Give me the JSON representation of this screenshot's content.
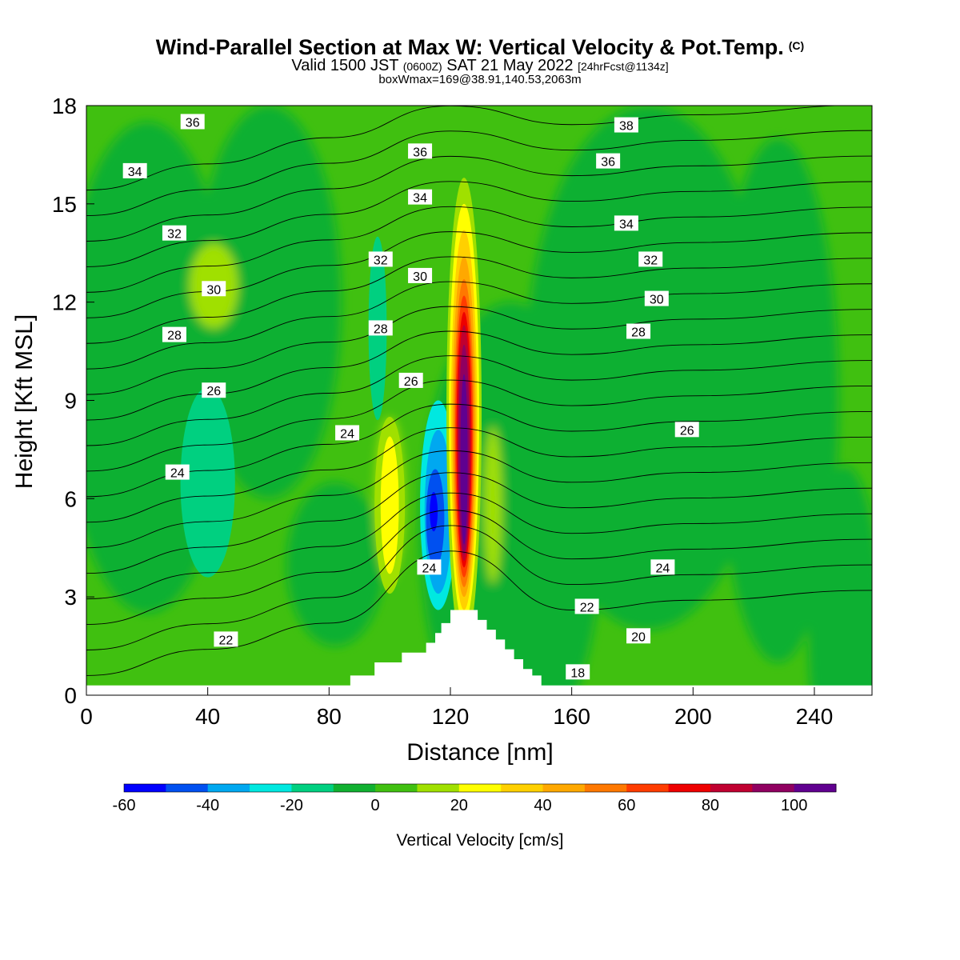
{
  "title": "Wind-Parallel Section at Max W: Vertical Velocity & Pot.Temp.",
  "copyright": "(C)",
  "subtitle_main_a": "Valid 1500 JST ",
  "subtitle_zulu": "(0600Z)",
  "subtitle_main_b": " SAT 21 May 2022 ",
  "subtitle_fcst": "[24hrFcst@1134z]",
  "subtitle2": "boxWmax=169@38.91,140.53,2063m",
  "chart_data": {
    "type": "heatmap",
    "xlabel": "Distance [nm]",
    "ylabel": "Height [Kft MSL]",
    "xlim": [
      0,
      259
    ],
    "ylim": [
      0,
      18
    ],
    "xticks": [
      0,
      40,
      80,
      120,
      160,
      200,
      240
    ],
    "yticks": [
      0,
      3,
      6,
      9,
      12,
      15,
      18
    ],
    "colorbar": {
      "label": "Vertical Velocity [cm/s]",
      "ticks": [
        -60,
        -40,
        -20,
        0,
        20,
        40,
        60,
        80,
        100
      ],
      "bins": [
        -60,
        -50,
        -40,
        -30,
        -20,
        -10,
        0,
        10,
        20,
        30,
        40,
        50,
        60,
        70,
        80,
        90,
        100,
        110
      ],
      "colors": [
        "#0000ff",
        "#0050f0",
        "#00a8f0",
        "#00e8e0",
        "#00d080",
        "#10b030",
        "#40c010",
        "#a0e000",
        "#ffff00",
        "#ffd000",
        "#ffa800",
        "#ff7800",
        "#ff3c00",
        "#ee0000",
        "#c00030",
        "#900060",
        "#600090"
      ]
    },
    "background_w_range": [
      0,
      10
    ],
    "features": [
      {
        "name": "updraft core",
        "x": 124,
        "y_range": [
          2.6,
          14.5
        ],
        "w_max": 110
      },
      {
        "name": "downdraft",
        "x": 116,
        "y_range": [
          2.8,
          9.2
        ],
        "w_min": -50
      },
      {
        "name": "weak downdraft",
        "x": 40,
        "y_range": [
          4,
          9.5
        ],
        "w_min": -20
      },
      {
        "name": "weak updraft",
        "x": 100,
        "y_range": [
          3,
          8.5
        ],
        "w_max": 30
      }
    ],
    "isentropes": [
      {
        "theta": 18,
        "x": 162,
        "y": 0.7
      },
      {
        "theta": 20,
        "x": 182,
        "y": 1.8
      },
      {
        "theta": 22,
        "x": 46,
        "y": 1.7
      },
      {
        "theta": 22,
        "x": 165,
        "y": 2.7
      },
      {
        "theta": 24,
        "x": 30,
        "y": 6.8
      },
      {
        "theta": 24,
        "x": 86,
        "y": 8.0
      },
      {
        "theta": 24,
        "x": 113,
        "y": 3.9
      },
      {
        "theta": 24,
        "x": 190,
        "y": 3.9
      },
      {
        "theta": 26,
        "x": 42,
        "y": 9.3
      },
      {
        "theta": 26,
        "x": 107,
        "y": 9.6
      },
      {
        "theta": 26,
        "x": 198,
        "y": 8.1
      },
      {
        "theta": 28,
        "x": 29,
        "y": 11.0
      },
      {
        "theta": 28,
        "x": 97,
        "y": 11.2
      },
      {
        "theta": 28,
        "x": 182,
        "y": 11.1
      },
      {
        "theta": 30,
        "x": 42,
        "y": 12.4
      },
      {
        "theta": 30,
        "x": 110,
        "y": 12.8
      },
      {
        "theta": 30,
        "x": 188,
        "y": 12.1
      },
      {
        "theta": 32,
        "x": 29,
        "y": 14.1
      },
      {
        "theta": 32,
        "x": 97,
        "y": 13.3
      },
      {
        "theta": 32,
        "x": 186,
        "y": 13.3
      },
      {
        "theta": 34,
        "x": 16,
        "y": 16.0
      },
      {
        "theta": 34,
        "x": 110,
        "y": 15.2
      },
      {
        "theta": 34,
        "x": 178,
        "y": 14.4
      },
      {
        "theta": 36,
        "x": 35,
        "y": 17.5
      },
      {
        "theta": 36,
        "x": 110,
        "y": 16.6
      },
      {
        "theta": 36,
        "x": 172,
        "y": 16.3
      },
      {
        "theta": 38,
        "x": 178,
        "y": 17.4
      }
    ],
    "terrain": [
      [
        0,
        0.3
      ],
      [
        87,
        0.3
      ],
      [
        87,
        0.6
      ],
      [
        95,
        0.6
      ],
      [
        95,
        1.0
      ],
      [
        104,
        1.0
      ],
      [
        104,
        1.3
      ],
      [
        112,
        1.3
      ],
      [
        112,
        1.6
      ],
      [
        115,
        1.6
      ],
      [
        115,
        1.9
      ],
      [
        117,
        1.9
      ],
      [
        117,
        2.2
      ],
      [
        120,
        2.2
      ],
      [
        120,
        2.6
      ],
      [
        129,
        2.6
      ],
      [
        129,
        2.3
      ],
      [
        132,
        2.3
      ],
      [
        132,
        2.0
      ],
      [
        135,
        2.0
      ],
      [
        135,
        1.7
      ],
      [
        138,
        1.7
      ],
      [
        138,
        1.4
      ],
      [
        141,
        1.4
      ],
      [
        141,
        1.1
      ],
      [
        144,
        1.1
      ],
      [
        144,
        0.8
      ],
      [
        147,
        0.8
      ],
      [
        147,
        0.6
      ],
      [
        150,
        0.6
      ],
      [
        150,
        0.3
      ],
      [
        259,
        0.3
      ]
    ]
  }
}
